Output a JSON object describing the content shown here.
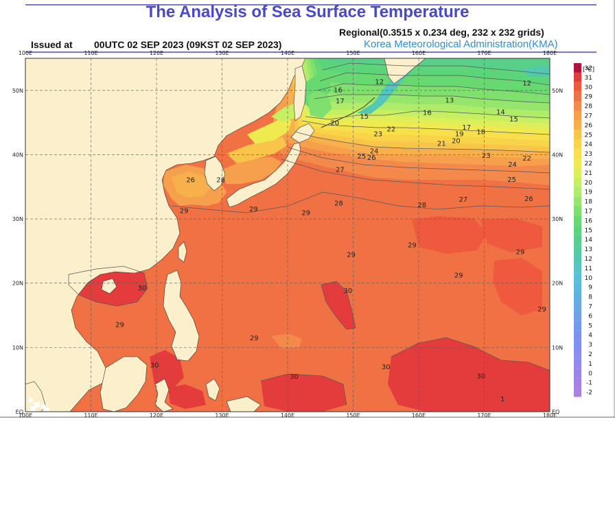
{
  "header": {
    "title": "The Analysis of Sea Surface Temperature",
    "issued_prefix": "Issued at",
    "issued_time": "00UTC 02 SEP 2023 (09KST 02 SEP 2023)",
    "grid_info": "Regional(0.3515 x 0.234 deg, 232 x 232 grids)",
    "agency": "Korea Meteorological Administration(KMA)"
  },
  "axes": {
    "lon_ticks": [
      "100E",
      "110E",
      "120E",
      "130E",
      "140E",
      "150E",
      "160E",
      "170E",
      "180E"
    ],
    "lat_ticks": [
      "50N",
      "40N",
      "30N",
      "20N",
      "10N",
      "EQ"
    ],
    "lon_values": [
      100,
      110,
      120,
      130,
      140,
      150,
      160,
      170,
      180
    ],
    "lat_values": [
      50,
      40,
      30,
      20,
      10,
      0
    ]
  },
  "legend": {
    "unit": "[℃]",
    "levels": [
      32,
      31,
      30,
      29,
      28,
      27,
      26,
      25,
      24,
      23,
      22,
      21,
      20,
      19,
      18,
      17,
      16,
      15,
      14,
      13,
      12,
      11,
      10,
      9,
      8,
      7,
      6,
      5,
      4,
      3,
      2,
      1,
      0,
      -1,
      -2
    ],
    "level_labels": [
      "32",
      "31",
      "30",
      "29",
      "28",
      "27",
      "26",
      "25",
      "24",
      "23",
      "22",
      "21",
      "20",
      "19",
      "18",
      "17",
      "16",
      "15",
      "14",
      "13",
      "12",
      "11",
      "10",
      "9",
      "8",
      "7",
      "6",
      "5",
      "4",
      "3",
      "2",
      "1",
      "0",
      "-1",
      "-2"
    ],
    "colors": [
      "#b0103a",
      "#e43c3c",
      "#ef5a3e",
      "#f07244",
      "#f3894b",
      "#f6a04d",
      "#f7b04c",
      "#f8c44a",
      "#f9d448",
      "#f7e04a",
      "#eeea50",
      "#dcef5a",
      "#c6ef62",
      "#aeec6a",
      "#96e66e",
      "#7fe070",
      "#68d870",
      "#5cd47a",
      "#58d08a",
      "#54cc9c",
      "#52c8b0",
      "#54c4c4",
      "#58c0d4",
      "#5cb8dc",
      "#62b0e2",
      "#68a8e6",
      "#6ea0ea",
      "#7498ee",
      "#7a92ee",
      "#8090f0",
      "#8a8cf0",
      "#9288ee",
      "#9a84ea",
      "#a282e6",
      "#aa80e2"
    ]
  },
  "contour_labels": [
    {
      "text": "12",
      "lon": 154,
      "lat": 51
    },
    {
      "text": "12",
      "lon": 176.5,
      "lat": 50.8
    },
    {
      "text": "13",
      "lon": 164.7,
      "lat": 48.1
    },
    {
      "text": "14",
      "lon": 172.5,
      "lat": 46.3
    },
    {
      "text": "15",
      "lon": 174.5,
      "lat": 45.2
    },
    {
      "text": "15",
      "lon": 151.7,
      "lat": 45.6
    },
    {
      "text": "16",
      "lon": 147.7,
      "lat": 49.7
    },
    {
      "text": "16",
      "lon": 161.3,
      "lat": 46.2
    },
    {
      "text": "17",
      "lon": 148,
      "lat": 48
    },
    {
      "text": "17",
      "lon": 167.3,
      "lat": 43.9
    },
    {
      "text": "18",
      "lon": 169.5,
      "lat": 43.2
    },
    {
      "text": "19",
      "lon": 166.2,
      "lat": 42.9
    },
    {
      "text": "20",
      "lon": 165.7,
      "lat": 41.8
    },
    {
      "text": "20",
      "lon": 147.2,
      "lat": 44.6
    },
    {
      "text": "21",
      "lon": 163.5,
      "lat": 41.4
    },
    {
      "text": "22",
      "lon": 155.8,
      "lat": 43.6
    },
    {
      "text": "22",
      "lon": 176.5,
      "lat": 39.1
    },
    {
      "text": "23",
      "lon": 153.8,
      "lat": 42.9
    },
    {
      "text": "23",
      "lon": 170.3,
      "lat": 39.5
    },
    {
      "text": "24",
      "lon": 153.2,
      "lat": 40.2
    },
    {
      "text": "24",
      "lon": 174.3,
      "lat": 38.1
    },
    {
      "text": "25",
      "lon": 151.3,
      "lat": 39.4
    },
    {
      "text": "25",
      "lon": 174.2,
      "lat": 35.8
    },
    {
      "text": "26",
      "lon": 152.8,
      "lat": 39.2
    },
    {
      "text": "26",
      "lon": 176.8,
      "lat": 32.8
    },
    {
      "text": "26",
      "lon": 125.2,
      "lat": 35.7
    },
    {
      "text": "27",
      "lon": 148,
      "lat": 37.3
    },
    {
      "text": "27",
      "lon": 166.8,
      "lat": 32.7
    },
    {
      "text": "28",
      "lon": 147.8,
      "lat": 32.1
    },
    {
      "text": "28",
      "lon": 129.8,
      "lat": 35.7
    },
    {
      "text": "28",
      "lon": 160.5,
      "lat": 31.8
    },
    {
      "text": "29",
      "lon": 124.2,
      "lat": 30.9
    },
    {
      "text": "29",
      "lon": 134.8,
      "lat": 31.2
    },
    {
      "text": "29",
      "lon": 142.8,
      "lat": 30.6
    },
    {
      "text": "29",
      "lon": 159,
      "lat": 25.6
    },
    {
      "text": "29",
      "lon": 149.7,
      "lat": 24.1
    },
    {
      "text": "29",
      "lon": 175.5,
      "lat": 24.5
    },
    {
      "text": "29",
      "lon": 166.1,
      "lat": 20.9
    },
    {
      "text": "29",
      "lon": 178.8,
      "lat": 15.6
    },
    {
      "text": "29",
      "lon": 114.4,
      "lat": 13.2
    },
    {
      "text": "29",
      "lon": 134.9,
      "lat": 11.1
    },
    {
      "text": "30",
      "lon": 117.8,
      "lat": 18.9
    },
    {
      "text": "30",
      "lon": 149.2,
      "lat": 18.5
    },
    {
      "text": "30",
      "lon": 119.7,
      "lat": 6.9
    },
    {
      "text": "30",
      "lon": 141,
      "lat": 5.1
    },
    {
      "text": "30",
      "lon": 155,
      "lat": 6.6
    },
    {
      "text": "30",
      "lon": 169.5,
      "lat": 5.2
    },
    {
      "text": "1",
      "lon": 172.8,
      "lat": 1.6
    }
  ]
}
